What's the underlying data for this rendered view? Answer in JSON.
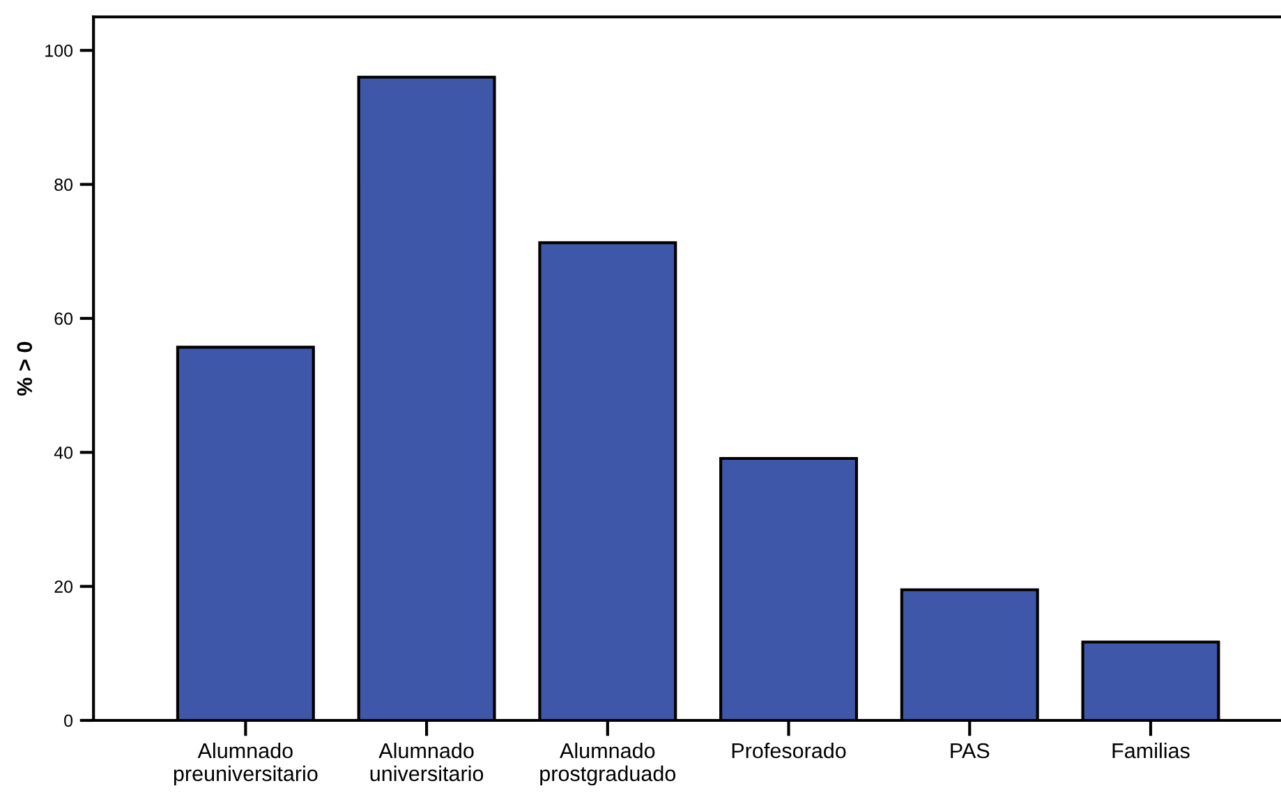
{
  "chart_data": {
    "type": "bar",
    "ylabel": "% > 0",
    "categories": [
      "Alumnado\npreuniversitario",
      "Alumnado\nuniversitario",
      "Alumnado\nprostgraduado",
      "Profesorado",
      "PAS",
      "Familias"
    ],
    "values": [
      55.7,
      96,
      71.3,
      39.1,
      19.5,
      11.7
    ],
    "color": "#3f57a8",
    "ylim": [
      0,
      105
    ],
    "yticks": [
      0,
      20,
      40,
      60,
      80,
      100
    ],
    "grid": false,
    "legend": false
  }
}
